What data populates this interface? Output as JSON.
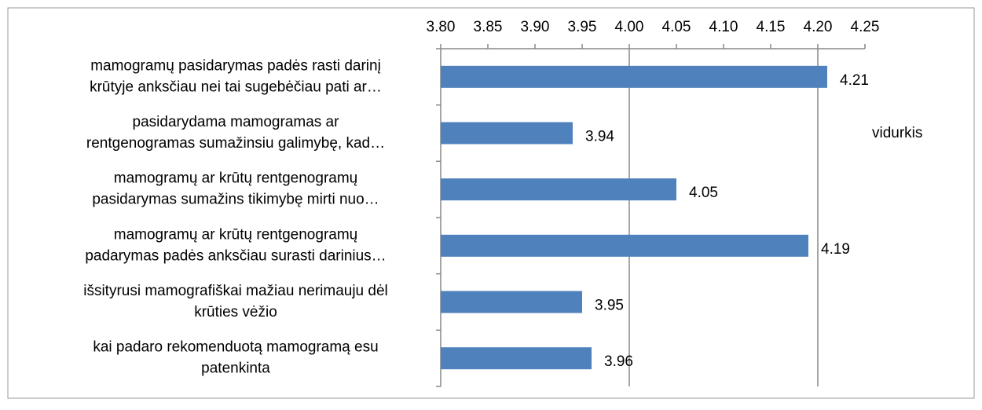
{
  "chart_data": {
    "type": "barh",
    "categories": [
      [
        "mamogramų pasidarymas padės rasti darinį",
        "krūtyje anksčiau nei tai sugebėčiau pati ar…"
      ],
      [
        "pasidarydama mamogramas ar",
        "rentgenogramas sumažinsiu galimybę, kad…"
      ],
      [
        "mamogramų ar krūtų rentgenogramų",
        "pasidarymas sumažins tikimybę mirti nuo…"
      ],
      [
        "mamogramų ar krūtų rentgenogramų",
        "padarymas padės anksčiau surasti darinius…"
      ],
      [
        "išsityrusi mamografiškai mažiau nerimauju dėl",
        "krūties vėžio"
      ],
      [
        "kai padaro rekomenduotą mamogramą esu",
        "patenkinta"
      ]
    ],
    "series": [
      {
        "name": "vidurkis",
        "color": "#4f81bd",
        "values": [
          4.21,
          3.94,
          4.05,
          4.19,
          3.95,
          3.96
        ]
      }
    ],
    "xlim": [
      3.8,
      4.25
    ],
    "xticks": [
      {
        "value": 3.8,
        "label": "3.80"
      },
      3.85,
      {
        "value": 3.9,
        "label": "3.90"
      },
      3.95,
      {
        "value": 4.0,
        "label": "4.00"
      },
      4.05,
      {
        "value": 4.1,
        "label": "4.10"
      },
      4.15,
      {
        "value": 4.2,
        "label": "4.20"
      },
      4.25
    ],
    "xgrid": [
      4.0,
      4.2
    ],
    "legend": "right"
  }
}
